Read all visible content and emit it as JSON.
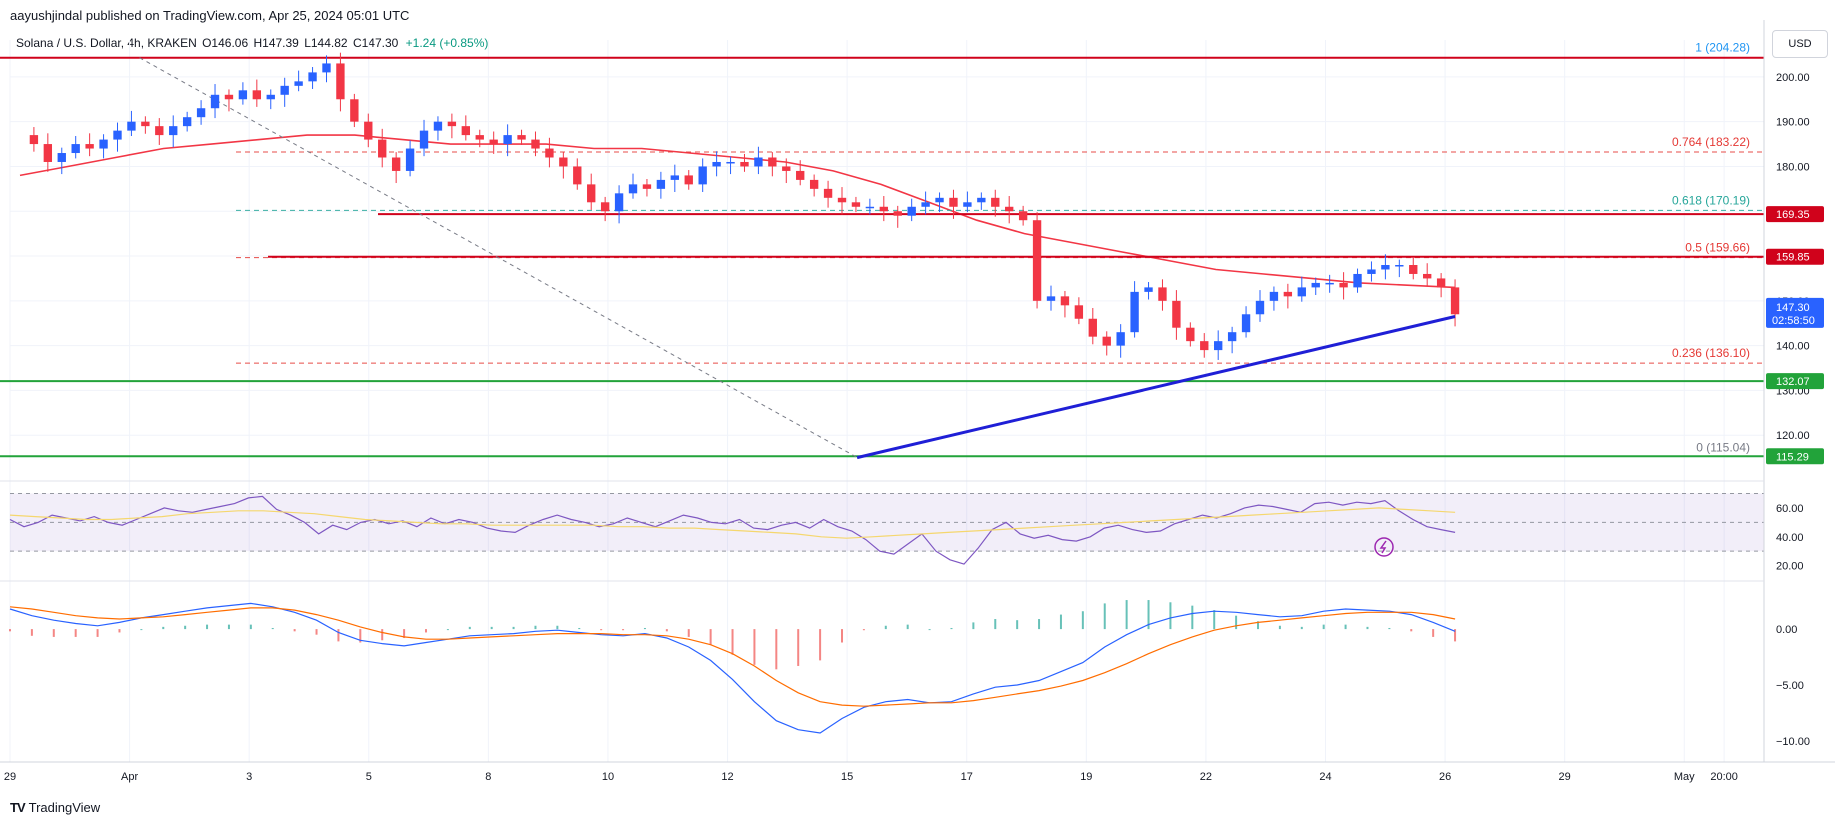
{
  "header": {
    "publisher": "aayushjindal published on TradingView.com, Apr 25, 2024 05:01 UTC",
    "symbol": "Solana / U.S. Dollar, 4h, KRAKEN",
    "open": "O146.06",
    "high": "H147.39",
    "low": "L144.82",
    "close": "C147.30",
    "change": "+1.24 (+0.85%)",
    "currency": "USD"
  },
  "footer": {
    "brand": "TradingView",
    "logo": "TV"
  },
  "colors": {
    "up": "#2962ff",
    "down": "#f23645",
    "ma": "#f23645",
    "resistance": "#d0021b",
    "support": "#22a33a",
    "trend": "#1f1fd6",
    "rsi": "#7e57c2",
    "rsi_ma": "#f5d76e",
    "macd": "#2962ff",
    "signal": "#ff6d00",
    "fib_red": "#e53935",
    "fib_teal": "#26a69a",
    "fib_blue": "#2196f3",
    "fib_gray": "#787b86"
  },
  "chart_data": {
    "type": "candlestick",
    "price_axis": {
      "range": [
        110,
        206
      ],
      "ticks": [
        "200.00",
        "190.00",
        "180.00",
        "170.00",
        "160.00",
        "150.00",
        "140.00",
        "130.00",
        "120.00"
      ],
      "tick_values": [
        200,
        190,
        180,
        170,
        160,
        150,
        140,
        130,
        120
      ]
    },
    "time_axis": {
      "labels": [
        "29",
        "Apr",
        "3",
        "5",
        "8",
        "10",
        "12",
        "15",
        "17",
        "19",
        "22",
        "24",
        "26",
        "29",
        "May",
        "20:00"
      ],
      "label_positions": [
        0,
        6,
        12,
        18,
        24,
        30,
        36,
        42,
        48,
        54,
        60,
        66,
        72,
        78,
        84,
        86
      ],
      "total_candles": 88
    },
    "close_series": [
      187,
      185,
      181,
      183,
      185,
      184,
      186,
      188,
      190,
      189,
      187,
      189,
      191,
      193,
      196,
      195,
      197,
      195,
      196,
      198,
      199,
      201,
      203,
      195,
      190,
      186,
      182,
      179,
      184,
      188,
      190,
      189,
      187,
      186,
      185,
      187,
      186,
      184,
      182,
      180,
      176,
      172,
      170,
      174,
      176,
      175,
      177,
      178,
      176,
      180,
      181,
      181,
      180,
      182,
      180,
      179,
      177,
      175,
      173,
      172,
      171,
      171,
      170,
      169,
      171,
      172,
      173,
      171,
      172,
      173,
      171,
      170,
      168,
      150,
      151,
      149,
      146,
      142,
      140,
      143,
      152,
      153,
      150,
      144,
      141,
      139,
      141,
      143,
      147,
      150,
      152,
      151,
      153,
      154,
      154,
      153,
      156,
      157,
      158,
      158,
      156,
      155,
      153,
      147
    ],
    "ohlc_sample_note": "",
    "moving_average": [
      178,
      180,
      182,
      184,
      185,
      186,
      187,
      187,
      186,
      185,
      185,
      185,
      184,
      184,
      183,
      182,
      181,
      179,
      176,
      172,
      168,
      165,
      163,
      161,
      159,
      157,
      156,
      155,
      154,
      153.5,
      153
    ],
    "horizontal_levels": [
      {
        "label": "169.35",
        "value": 169.35,
        "kind": "resistance"
      },
      {
        "label": "159.85",
        "value": 159.85,
        "kind": "resistance"
      },
      {
        "label": "132.07",
        "value": 132.07,
        "kind": "support"
      },
      {
        "label": "115.29",
        "value": 115.29,
        "kind": "support"
      }
    ],
    "fib_levels": [
      {
        "ratio": "1",
        "price": "(204.28)",
        "value": 204.28,
        "color": "#2196f3"
      },
      {
        "ratio": "0.764",
        "price": "(183.22)",
        "value": 183.22,
        "color": "#e53935"
      },
      {
        "ratio": "0.618",
        "price": "(170.19)",
        "value": 170.19,
        "color": "#26a69a"
      },
      {
        "ratio": "0.5",
        "price": "(159.66)",
        "value": 159.66,
        "color": "#e53935"
      },
      {
        "ratio": "0.236",
        "price": "(136.10)",
        "value": 136.1,
        "color": "#e53935"
      },
      {
        "ratio": "0",
        "price": "(115.04)",
        "value": 115.04,
        "color": "#787b86"
      }
    ],
    "current_price": {
      "label": "147.30",
      "countdown": "02:58:50",
      "value": 147.3
    },
    "trendline": {
      "from": {
        "candle": 42,
        "price": 115.0
      },
      "to": {
        "candle": 72,
        "price": 146.5
      }
    },
    "rsi": {
      "ticks": [
        "60.00",
        "40.00",
        "20.00"
      ],
      "tick_values": [
        60,
        40,
        20
      ],
      "range": [
        10,
        78
      ],
      "band": [
        30,
        70
      ],
      "values": [
        52,
        47,
        50,
        55,
        53,
        51,
        54,
        50,
        48,
        52,
        56,
        60,
        58,
        57,
        59,
        61,
        63,
        67,
        68,
        59,
        55,
        50,
        42,
        48,
        45,
        50,
        52,
        49,
        51,
        47,
        53,
        49,
        52,
        50,
        46,
        44,
        43,
        48,
        52,
        55,
        52,
        50,
        47,
        49,
        53,
        50,
        47,
        51,
        55,
        53,
        50,
        49,
        52,
        46,
        45,
        48,
        50,
        46,
        52,
        47,
        44,
        38,
        30,
        28,
        35,
        42,
        30,
        24,
        21,
        32,
        45,
        50,
        42,
        39,
        41,
        38,
        37,
        40,
        46,
        48,
        45,
        43,
        44,
        49,
        52,
        55,
        53,
        56,
        60,
        62,
        61,
        59,
        57,
        63,
        64,
        62,
        64,
        63,
        65,
        58,
        52,
        47,
        45,
        43
      ],
      "ma_values": [
        55,
        54,
        53,
        52,
        52,
        53,
        54,
        56,
        57,
        58,
        58,
        57,
        56,
        54,
        52,
        51,
        50,
        49,
        49,
        48,
        48,
        48,
        48,
        48,
        47,
        47,
        46,
        46,
        45,
        44,
        43,
        42,
        40,
        39,
        40,
        41,
        42,
        43,
        44,
        45,
        46,
        47,
        48,
        49,
        50,
        51,
        52,
        53,
        54,
        55,
        56,
        57,
        58,
        59,
        60,
        59,
        58,
        57
      ]
    },
    "macd": {
      "ticks": [
        "0.00",
        "−5.00",
        "−10.00"
      ],
      "tick_values": [
        0,
        -5,
        -10
      ],
      "range": [
        -11,
        3.5
      ],
      "macd_values": [
        1.8,
        1.2,
        0.8,
        0.5,
        0.3,
        0.6,
        1.0,
        1.3,
        1.6,
        1.9,
        2.1,
        2.3,
        2.0,
        1.5,
        0.8,
        -0.3,
        -1.0,
        -1.3,
        -1.5,
        -1.2,
        -0.9,
        -0.6,
        -0.5,
        -0.4,
        -0.2,
        -0.1,
        -0.3,
        -0.5,
        -0.6,
        -0.4,
        -0.8,
        -1.6,
        -2.8,
        -4.5,
        -6.5,
        -8.2,
        -9.0,
        -9.3,
        -8.0,
        -7.0,
        -6.5,
        -6.3,
        -6.6,
        -6.5,
        -5.8,
        -5.2,
        -5.0,
        -4.6,
        -3.8,
        -3.0,
        -1.6,
        -0.5,
        0.4,
        1.0,
        1.4,
        1.6,
        1.5,
        1.3,
        1.1,
        1.2,
        1.6,
        1.8,
        1.7,
        1.6,
        1.3,
        0.6,
        -0.2
      ],
      "signal_values": [
        2.0,
        1.8,
        1.5,
        1.2,
        1.0,
        0.9,
        1.0,
        1.1,
        1.3,
        1.5,
        1.7,
        1.9,
        1.9,
        1.7,
        1.3,
        0.8,
        0.2,
        -0.3,
        -0.7,
        -0.9,
        -0.9,
        -0.8,
        -0.7,
        -0.6,
        -0.5,
        -0.4,
        -0.4,
        -0.4,
        -0.5,
        -0.5,
        -0.6,
        -0.9,
        -1.4,
        -2.2,
        -3.3,
        -4.6,
        -5.7,
        -6.5,
        -6.8,
        -6.9,
        -6.8,
        -6.7,
        -6.6,
        -6.6,
        -6.4,
        -6.1,
        -5.8,
        -5.5,
        -5.1,
        -4.6,
        -3.9,
        -3.1,
        -2.2,
        -1.4,
        -0.7,
        -0.1,
        0.3,
        0.6,
        0.8,
        1.0,
        1.2,
        1.4,
        1.5,
        1.5,
        1.5,
        1.3,
        0.9
      ],
      "histogram": [
        -0.2,
        -0.6,
        -0.7,
        -0.7,
        -0.7,
        -0.3,
        0,
        0.2,
        0.3,
        0.4,
        0.4,
        0.4,
        0.1,
        -0.2,
        -0.5,
        -1.1,
        -1.2,
        -1.0,
        -0.8,
        -0.3,
        0,
        0.2,
        0.2,
        0.2,
        0.3,
        0.3,
        0.1,
        -0.1,
        -0.1,
        0.1,
        -0.2,
        -0.7,
        -1.4,
        -2.3,
        -3.2,
        -3.6,
        -3.3,
        -2.8,
        -1.2,
        -0.1,
        0.3,
        0.4,
        -0.0,
        0.1,
        0.6,
        0.9,
        0.8,
        0.9,
        1.3,
        1.6,
        2.3,
        2.6,
        2.6,
        2.4,
        2.1,
        1.7,
        1.2,
        0.7,
        0.3,
        0.2,
        0.4,
        0.4,
        0.2,
        0.1,
        -0.2,
        -0.7,
        -1.1
      ]
    }
  }
}
